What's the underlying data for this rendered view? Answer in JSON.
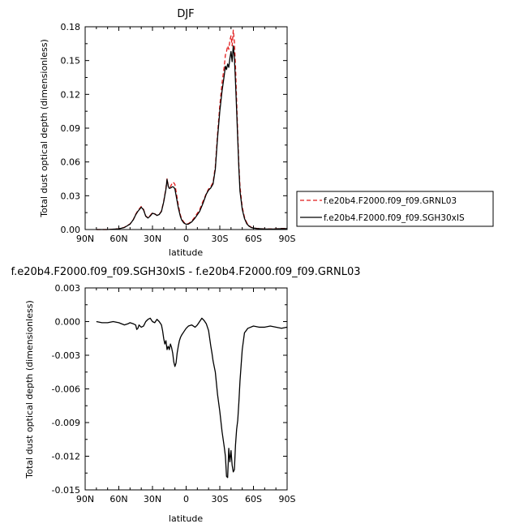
{
  "chart_data": [
    {
      "type": "line",
      "title": "DJF",
      "xlabel": "latitude",
      "ylabel": "Total dust optical depth (dimensionless)",
      "xlim": [
        90,
        -90
      ],
      "ylim": [
        0,
        0.18
      ],
      "xticks": [
        90,
        60,
        30,
        0,
        -30,
        -60,
        -90
      ],
      "xtick_labels": [
        "90N",
        "60N",
        "30N",
        "0",
        "30S",
        "60S",
        "90S"
      ],
      "yticks": [
        0,
        0.03,
        0.06,
        0.09,
        0.12,
        0.15,
        0.18
      ],
      "ytick_labels": [
        "0.00",
        "0.03",
        "0.06",
        "0.09",
        "0.12",
        "0.15",
        "0.18"
      ],
      "legend": "right-bottom",
      "grid": false,
      "series": [
        {
          "name": "f.e20b4.F2000.f09_f09.GRNL03",
          "color": "#e11b1b",
          "dash": "dashed",
          "x": [
            80,
            70,
            60,
            55,
            50,
            47,
            45,
            43,
            40,
            38,
            36,
            34,
            32,
            30,
            28,
            26,
            24,
            22,
            20,
            18,
            17,
            16,
            15,
            14,
            13,
            12,
            11,
            10,
            9,
            8,
            7,
            6,
            5,
            4,
            2,
            0,
            -2,
            -5,
            -8,
            -12,
            -15,
            -18,
            -20,
            -22,
            -24,
            -26,
            -28,
            -30,
            -32,
            -34,
            -35,
            -36,
            -37,
            -38,
            -39,
            -40,
            -41,
            -42,
            -43,
            -44,
            -45,
            -46,
            -47,
            -48,
            -50,
            -52,
            -54,
            -56,
            -58,
            -60,
            -63,
            -66,
            -70,
            -75,
            -80,
            -85,
            -90
          ],
          "y": [
            0.0,
            0.0,
            0.0007,
            0.002,
            0.005,
            0.009,
            0.0135,
            0.0168,
            0.0205,
            0.018,
            0.012,
            0.0105,
            0.0125,
            0.015,
            0.014,
            0.0125,
            0.0135,
            0.0165,
            0.025,
            0.037,
            0.045,
            0.0395,
            0.0375,
            0.038,
            0.04,
            0.042,
            0.0415,
            0.04,
            0.034,
            0.028,
            0.022,
            0.017,
            0.0125,
            0.0095,
            0.0065,
            0.005,
            0.0052,
            0.0075,
            0.0115,
            0.0175,
            0.025,
            0.032,
            0.036,
            0.038,
            0.042,
            0.056,
            0.085,
            0.11,
            0.13,
            0.145,
            0.155,
            0.158,
            0.163,
            0.16,
            0.168,
            0.172,
            0.163,
            0.177,
            0.167,
            0.145,
            0.115,
            0.085,
            0.058,
            0.038,
            0.02,
            0.011,
            0.006,
            0.0035,
            0.002,
            0.0015,
            0.001,
            0.0008,
            0.0005,
            0.0005,
            0.0006,
            0.001,
            0.001
          ]
        },
        {
          "name": "f.e20b4.F2000.f09_f09.SGH30xIS",
          "color": "#000000",
          "dash": "solid",
          "x": [
            80,
            70,
            60,
            55,
            50,
            47,
            45,
            43,
            40,
            38,
            36,
            34,
            32,
            30,
            28,
            26,
            24,
            22,
            20,
            18,
            17,
            16,
            15,
            14,
            13,
            12,
            11,
            10,
            9,
            8,
            7,
            6,
            5,
            4,
            2,
            0,
            -2,
            -5,
            -8,
            -12,
            -15,
            -18,
            -20,
            -22,
            -24,
            -26,
            -28,
            -30,
            -32,
            -34,
            -35,
            -36,
            -37,
            -38,
            -39,
            -40,
            -41,
            -42,
            -43,
            -44,
            -45,
            -46,
            -47,
            -48,
            -50,
            -52,
            -54,
            -56,
            -58,
            -60,
            -63,
            -66,
            -70,
            -75,
            -80,
            -85,
            -90
          ],
          "y": [
            0.0,
            0.0,
            0.0006,
            0.0018,
            0.0048,
            0.0088,
            0.013,
            0.0162,
            0.0198,
            0.0175,
            0.0118,
            0.0102,
            0.012,
            0.0145,
            0.0138,
            0.0125,
            0.0133,
            0.016,
            0.0245,
            0.0358,
            0.0445,
            0.0385,
            0.0365,
            0.0368,
            0.0375,
            0.038,
            0.0375,
            0.036,
            0.0305,
            0.025,
            0.0195,
            0.0152,
            0.0112,
            0.0085,
            0.0058,
            0.0046,
            0.0048,
            0.0068,
            0.0103,
            0.016,
            0.0232,
            0.0315,
            0.035,
            0.037,
            0.0405,
            0.0535,
            0.0815,
            0.105,
            0.123,
            0.137,
            0.145,
            0.142,
            0.147,
            0.144,
            0.152,
            0.158,
            0.149,
            0.163,
            0.153,
            0.131,
            0.106,
            0.08,
            0.054,
            0.034,
            0.018,
            0.0098,
            0.0052,
            0.003,
            0.0018,
            0.0013,
            0.0009,
            0.0007,
            0.0004,
            0.0004,
            0.0005,
            0.0008,
            0.0008
          ]
        }
      ]
    },
    {
      "type": "line",
      "title": "f.e20b4.F2000.f09_f09.SGH30xIS - f.e20b4.F2000.f09_f09.GRNL03",
      "xlabel": "latitude",
      "ylabel": "Total dust optical depth (dimensionless)",
      "xlim": [
        90,
        -90
      ],
      "ylim": [
        -0.015,
        0.003
      ],
      "xticks": [
        90,
        60,
        30,
        0,
        -30,
        -60,
        -90
      ],
      "xtick_labels": [
        "90N",
        "60N",
        "30N",
        "0",
        "30S",
        "60S",
        "90S"
      ],
      "yticks": [
        -0.015,
        -0.012,
        -0.009,
        -0.006,
        -0.003,
        0.0,
        0.003
      ],
      "ytick_labels": [
        "-0.015",
        "-0.012",
        "-0.009",
        "-0.006",
        "-0.003",
        "0.000",
        "0.003"
      ],
      "grid": false,
      "series": [
        {
          "color": "#000000",
          "dash": "solid",
          "x": [
            80,
            75,
            70,
            65,
            60,
            55,
            52,
            50,
            47,
            45,
            44,
            43,
            42,
            40,
            38,
            36,
            34,
            32,
            30,
            28,
            26,
            24,
            22,
            21,
            20,
            19,
            18,
            17,
            16,
            15,
            14,
            13,
            12,
            11,
            10,
            9,
            8,
            7,
            6,
            5,
            4,
            2,
            0,
            -2,
            -5,
            -8,
            -10,
            -12,
            -14,
            -16,
            -18,
            -20,
            -22,
            -23,
            -24,
            -25,
            -26,
            -28,
            -30,
            -32,
            -34,
            -35,
            -36,
            -37,
            -38,
            -39,
            -40,
            -41,
            -42,
            -43,
            -44,
            -45,
            -46,
            -47,
            -48,
            -50,
            -52,
            -55,
            -60,
            -65,
            -70,
            -75,
            -80,
            -85,
            -90
          ],
          "y": [
            0.0,
            -0.0001,
            -0.0001,
            0.0,
            -0.0001,
            -0.0003,
            -0.0002,
            -0.0001,
            -0.0002,
            -0.0003,
            -0.0007,
            -0.0006,
            -0.0003,
            -0.0005,
            -0.0004,
            0.0,
            0.0002,
            0.0003,
            0.0,
            -0.0001,
            0.0002,
            0.0,
            -0.0003,
            -0.0008,
            -0.0015,
            -0.002,
            -0.0017,
            -0.0025,
            -0.0022,
            -0.0025,
            -0.002,
            -0.0023,
            -0.0028,
            -0.0036,
            -0.004,
            -0.0037,
            -0.0028,
            -0.0022,
            -0.0017,
            -0.0014,
            -0.0012,
            -0.0009,
            -0.0006,
            -0.0004,
            -0.0003,
            -0.0005,
            -0.0003,
            0.0,
            0.0003,
            0.0001,
            -0.0002,
            -0.0008,
            -0.0022,
            -0.0028,
            -0.0035,
            -0.004,
            -0.0045,
            -0.0065,
            -0.008,
            -0.0098,
            -0.0112,
            -0.012,
            -0.0138,
            -0.0139,
            -0.0113,
            -0.0125,
            -0.0115,
            -0.0128,
            -0.0134,
            -0.0132,
            -0.011,
            -0.0096,
            -0.0088,
            -0.0072,
            -0.0053,
            -0.0025,
            -0.001,
            -0.0006,
            -0.0004,
            -0.0005,
            -0.0005,
            -0.0004,
            -0.0005,
            -0.0006,
            -0.0005
          ]
        }
      ]
    }
  ]
}
